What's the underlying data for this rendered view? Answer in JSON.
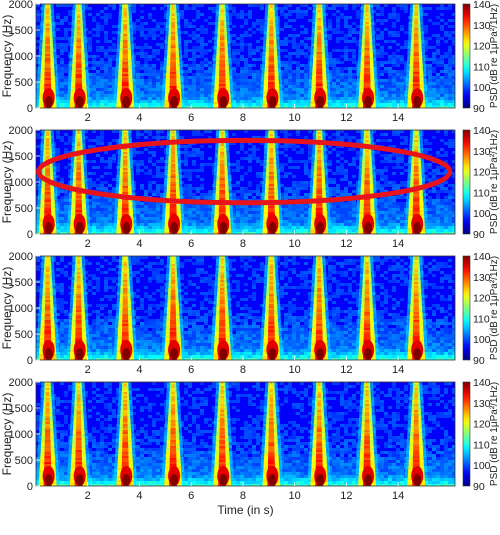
{
  "chart_data": [
    {
      "type": "heatmap",
      "title": "",
      "xlabel": "",
      "ylabel": "Frequency (Hz)",
      "xlim": [
        0,
        16.2
      ],
      "ylim": [
        0,
        2000
      ],
      "xticks": [
        "2",
        "4",
        "6",
        "8",
        "10",
        "12",
        "14"
      ],
      "yticks": [
        "0",
        "500",
        "1000",
        "1500",
        "2000"
      ],
      "colorbar": {
        "label": "PSD (dB re 1μPa²/1Hz)",
        "range": [
          90,
          140
        ],
        "ticks": [
          "90",
          "100",
          "110",
          "120",
          "130",
          "140"
        ]
      },
      "pulse_times": [
        0.45,
        1.65,
        3.45,
        5.3,
        7.2,
        9.1,
        10.95,
        12.8,
        14.7
      ],
      "highlight": null
    },
    {
      "type": "heatmap",
      "title": "",
      "xlabel": "",
      "ylabel": "Frequency (Hz)",
      "xlim": [
        0,
        16.2
      ],
      "ylim": [
        0,
        2000
      ],
      "xticks": [
        "2",
        "4",
        "6",
        "8",
        "10",
        "12",
        "14"
      ],
      "yticks": [
        "0",
        "500",
        "1000",
        "1500",
        "2000"
      ],
      "colorbar": {
        "label": "PSD (dB re 1μPa²/1Hz)",
        "range": [
          90,
          140
        ],
        "ticks": [
          "90",
          "100",
          "110",
          "120",
          "130",
          "140"
        ]
      },
      "pulse_times": [
        0.45,
        1.65,
        3.45,
        5.3,
        7.2,
        9.1,
        10.95,
        12.8,
        14.7
      ],
      "highlight": {
        "shape": "ellipse",
        "color": "#e8141c",
        "x_range": [
          0.1,
          16.0
        ],
        "y_range": [
          600,
          1800
        ]
      }
    },
    {
      "type": "heatmap",
      "title": "",
      "xlabel": "",
      "ylabel": "Frequency (Hz)",
      "xlim": [
        0,
        16.2
      ],
      "ylim": [
        0,
        2000
      ],
      "xticks": [
        "2",
        "4",
        "6",
        "8",
        "10",
        "12",
        "14"
      ],
      "yticks": [
        "0",
        "500",
        "1000",
        "1500",
        "2000"
      ],
      "colorbar": {
        "label": "PSD (dB re 1μPa²/1Hz)",
        "range": [
          90,
          140
        ],
        "ticks": [
          "90",
          "100",
          "110",
          "120",
          "130",
          "140"
        ]
      },
      "pulse_times": [
        0.45,
        1.65,
        3.45,
        5.3,
        7.2,
        9.1,
        10.95,
        12.8,
        14.7
      ],
      "highlight": null
    },
    {
      "type": "heatmap",
      "title": "",
      "xlabel": "Time (in s)",
      "ylabel": "Frequency (Hz)",
      "xlim": [
        0,
        16.2
      ],
      "ylim": [
        0,
        2000
      ],
      "xticks": [
        "2",
        "4",
        "6",
        "8",
        "10",
        "12",
        "14"
      ],
      "yticks": [
        "0",
        "500",
        "1000",
        "1500",
        "2000"
      ],
      "colorbar": {
        "label": "PSD (dB re 1μPa²/1Hz)",
        "range": [
          90,
          140
        ],
        "ticks": [
          "90",
          "100",
          "110",
          "120",
          "130",
          "140"
        ]
      },
      "pulse_times": [
        0.45,
        1.65,
        3.45,
        5.3,
        7.2,
        9.1,
        10.95,
        12.8,
        14.7
      ],
      "highlight": null
    }
  ]
}
